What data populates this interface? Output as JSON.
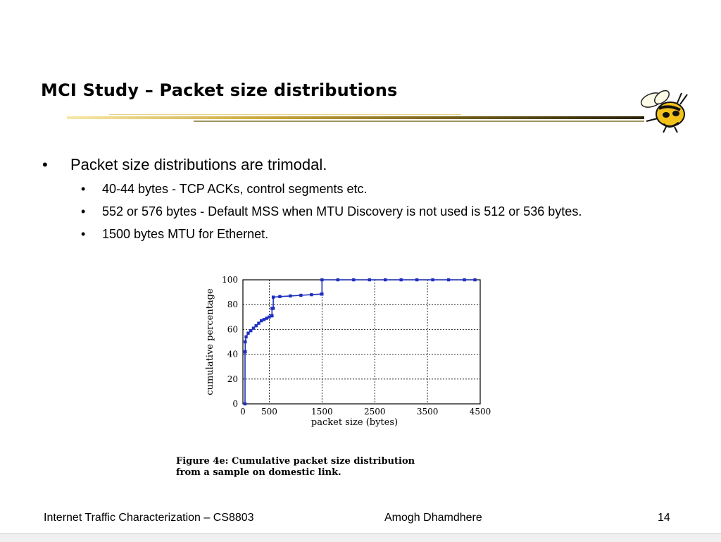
{
  "slide": {
    "title": "MCI Study – Packet size distributions",
    "bullets": {
      "main": "Packet size distributions are trimodal.",
      "sub": [
        "40-44 bytes - TCP ACKs, control segments etc.",
        "552 or 576 bytes - Default MSS when MTU Discovery is not used is 512 or 536 bytes.",
        "1500 bytes MTU for Ethernet."
      ]
    },
    "figure_caption": [
      "Figure 4e: Cumulative packet size distribution",
      "from a sample on domestic link."
    ]
  },
  "chart_data": {
    "type": "line",
    "xlabel": "packet size (bytes)",
    "ylabel": "cumulative percentage",
    "xlim": [
      0,
      4500
    ],
    "ylim": [
      0,
      100
    ],
    "x_ticks": [
      "0",
      "500",
      "1500",
      "2500",
      "3500",
      "4500"
    ],
    "y_ticks": [
      "0",
      "20",
      "40",
      "60",
      "80",
      "100"
    ],
    "x_tick_values": [
      0,
      500,
      1500,
      2500,
      3500,
      4500
    ],
    "y_tick_values": [
      0,
      20,
      40,
      60,
      80,
      100
    ],
    "grid": true,
    "colors": {
      "series": "#1f2fbf",
      "grid": "#000000"
    },
    "series": [
      {
        "x": [
          40,
          40,
          44,
          44,
          60,
          100,
          150,
          200,
          250,
          300,
          350,
          400,
          450,
          500,
          540,
          552,
          552,
          576,
          576,
          700,
          900,
          1100,
          1300,
          1490,
          1500,
          1500,
          1800,
          2100,
          2400,
          2700,
          3000,
          3300,
          3600,
          3900,
          4200,
          4400
        ],
        "y": [
          0,
          42,
          42,
          50,
          54,
          57,
          59,
          61,
          63,
          65,
          67,
          68,
          69,
          70,
          71,
          71,
          77,
          77,
          86,
          86.5,
          87,
          87.5,
          88,
          88.5,
          88.5,
          100,
          100,
          100,
          100,
          100,
          100,
          100,
          100,
          100,
          100,
          100
        ]
      }
    ]
  },
  "footer": {
    "course": "Internet Traffic Characterization – CS8803",
    "author": "Amogh Dhamdhere",
    "page": "14"
  }
}
